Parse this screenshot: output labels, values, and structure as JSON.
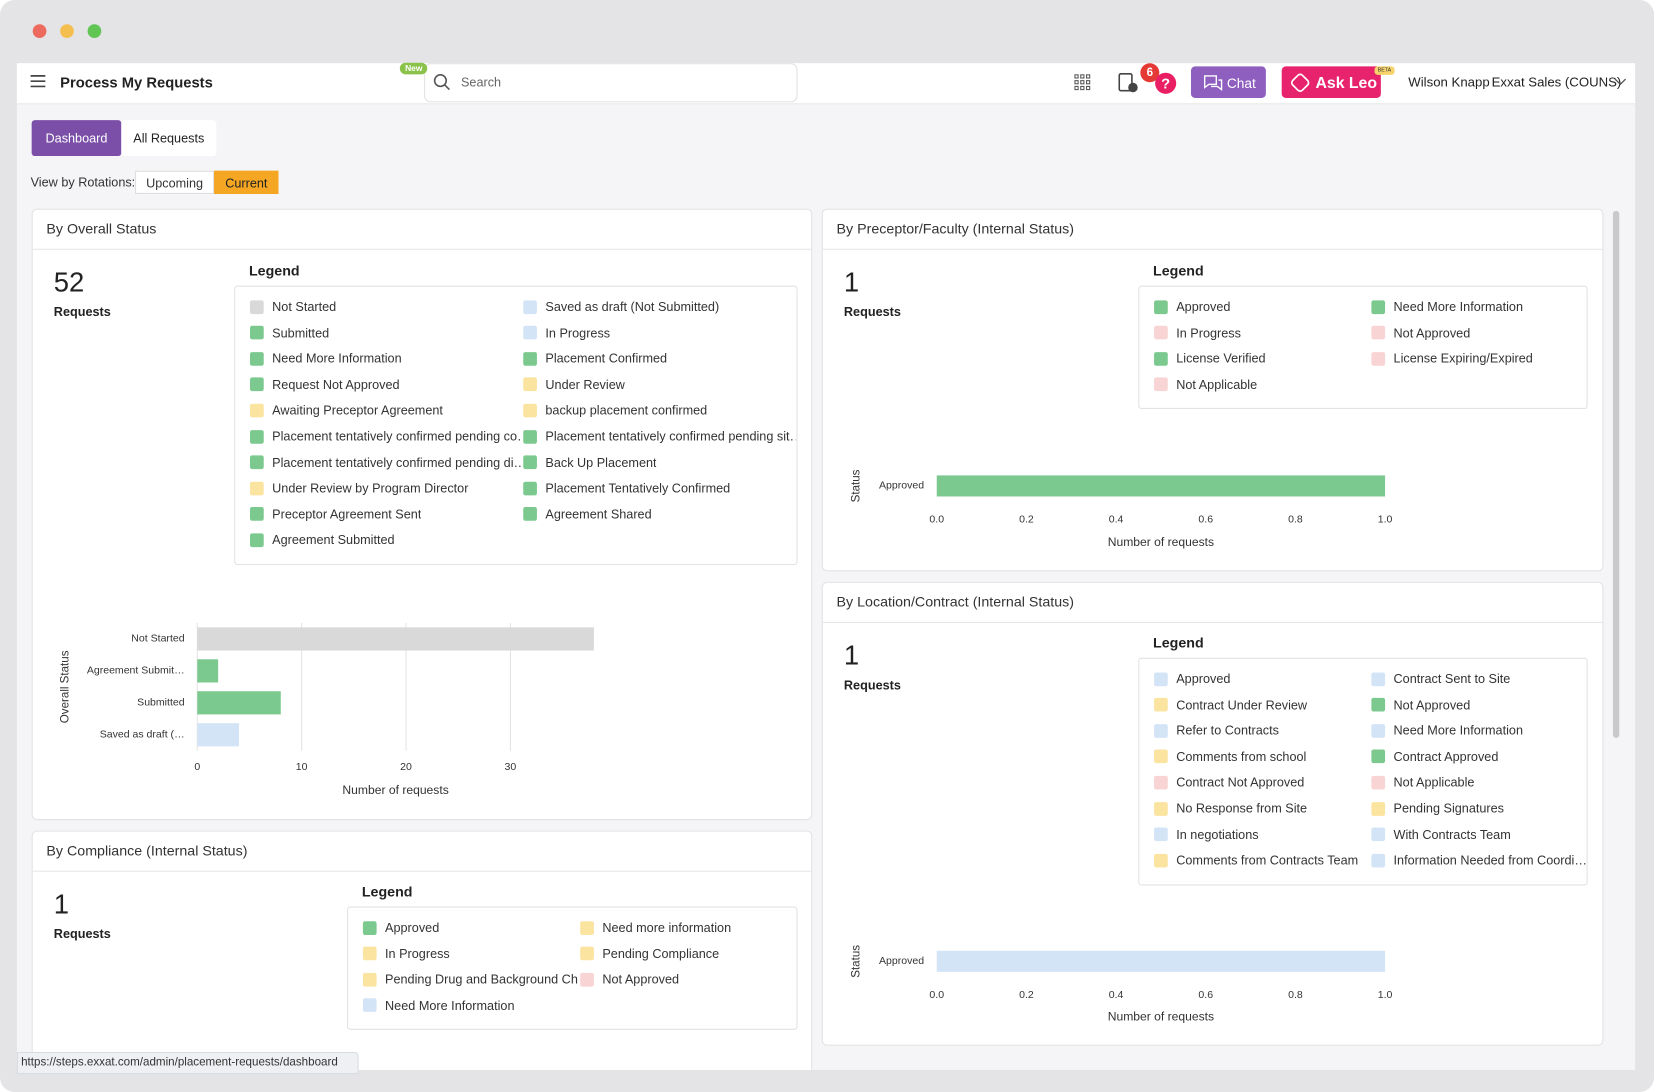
{
  "window": {
    "app_title": "Process My Requests",
    "new_badge": "New",
    "search_placeholder": "Search",
    "notification_count": 6,
    "chat": "Chat",
    "ask_leo": "Ask Leo",
    "beta": "BETA",
    "user_name": "Wilson Knapp",
    "organization": "Exxat Sales (COUNS)"
  },
  "tabs": [
    {
      "label": "Dashboard",
      "active": true
    },
    {
      "label": "All Requests",
      "active": false
    }
  ],
  "view_by": {
    "label": "View by Rotations:",
    "options": [
      {
        "label": "Upcoming",
        "active": false
      },
      {
        "label": "Current",
        "active": true
      }
    ]
  },
  "panels": [
    {
      "title": "By Overall Status",
      "count": 52,
      "count_label": "Requests",
      "legend_title": "Legend",
      "legend": [
        {
          "label": "Not Started",
          "color": "#d9d9d9"
        },
        {
          "label": "Saved as draft (Not Submitted)",
          "color": "#d4e4f7"
        },
        {
          "label": "Submitted",
          "color": "#7cc98f"
        },
        {
          "label": "In Progress",
          "color": "#d4e4f7"
        },
        {
          "label": "Need More Information",
          "color": "#7cc98f"
        },
        {
          "label": "Placement Confirmed",
          "color": "#7cc98f"
        },
        {
          "label": "Request Not Approved",
          "color": "#7cc98f"
        },
        {
          "label": "Under Review",
          "color": "#fbe3a0"
        },
        {
          "label": "Awaiting Preceptor Agreement",
          "color": "#fbe3a0"
        },
        {
          "label": "backup placement confirmed",
          "color": "#fbe3a0"
        },
        {
          "label": "Placement tentatively confirmed pending co…",
          "color": "#7cc98f"
        },
        {
          "label": "Placement tentatively confirmed pending sit…",
          "color": "#7cc98f"
        },
        {
          "label": "Placement tentatively confirmed pending di…",
          "color": "#7cc98f"
        },
        {
          "label": "Back Up Placement",
          "color": "#7cc98f"
        },
        {
          "label": "Under Review by Program Director",
          "color": "#fbe3a0"
        },
        {
          "label": "Placement Tentatively Confirmed",
          "color": "#7cc98f"
        },
        {
          "label": "Preceptor Agreement Sent",
          "color": "#7cc98f"
        },
        {
          "label": "Agreement Shared",
          "color": "#7cc98f"
        },
        {
          "label": "Agreement Submitted",
          "color": "#7cc98f"
        }
      ],
      "chart": {
        "type": "bar",
        "orientation": "horizontal",
        "y_label": "Overall Status",
        "x_label": "Number of requests",
        "categories": [
          "Not Started",
          "Agreement Submit…",
          "Submitted",
          "Saved as draft (…"
        ],
        "values": [
          38,
          2,
          8,
          4
        ],
        "colors": [
          "#d9d9d9",
          "#7cc98f",
          "#7cc98f",
          "#d4e4f7"
        ],
        "xlim": [
          0,
          38
        ],
        "xticks": [
          0,
          10,
          20,
          30
        ],
        "grid": true
      }
    },
    {
      "title": "By Preceptor/Faculty (Internal Status)",
      "count": 1,
      "count_label": "Requests",
      "legend_title": "Legend",
      "legend": [
        {
          "label": "Approved",
          "color": "#7cc98f"
        },
        {
          "label": "Need More Information",
          "color": "#7cc98f"
        },
        {
          "label": "In Progress",
          "color": "#f9d4d4"
        },
        {
          "label": "Not Approved",
          "color": "#f9d4d4"
        },
        {
          "label": "License Verified",
          "color": "#7cc98f"
        },
        {
          "label": "License Expiring/Expired",
          "color": "#f9d4d4"
        },
        {
          "label": "Not Applicable",
          "color": "#f9d4d4"
        }
      ],
      "chart": {
        "type": "bar",
        "orientation": "horizontal",
        "y_label": "Status",
        "x_label": "Number of requests",
        "categories": [
          "Approved"
        ],
        "values": [
          1
        ],
        "colors": [
          "#7cc98f"
        ],
        "xlim": [
          0,
          1
        ],
        "xticks": [
          {
            "value": 0,
            "label": "0.0"
          },
          {
            "value": 0.2,
            "label": "0.2"
          },
          {
            "value": 0.4,
            "label": "0.4"
          },
          {
            "value": 0.6,
            "label": "0.6"
          },
          {
            "value": 0.8,
            "label": "0.8"
          },
          {
            "value": 1,
            "label": "1.0"
          }
        ],
        "grid": false
      }
    },
    {
      "title": "By Location/Contract (Internal Status)",
      "count": 1,
      "count_label": "Requests",
      "legend_title": "Legend",
      "legend": [
        {
          "label": "Approved",
          "color": "#d4e4f7"
        },
        {
          "label": "Contract Sent to Site",
          "color": "#d4e4f7"
        },
        {
          "label": "Contract Under Review",
          "color": "#fbe3a0"
        },
        {
          "label": "Not Approved",
          "color": "#7cc98f"
        },
        {
          "label": "Refer to Contracts",
          "color": "#d4e4f7"
        },
        {
          "label": "Need More Information",
          "color": "#d4e4f7"
        },
        {
          "label": "Comments from school",
          "color": "#fbe3a0"
        },
        {
          "label": "Contract Approved",
          "color": "#7cc98f"
        },
        {
          "label": "Contract Not Approved",
          "color": "#f9d4d4"
        },
        {
          "label": "Not Applicable",
          "color": "#f9d4d4"
        },
        {
          "label": "No Response from Site",
          "color": "#fbe3a0"
        },
        {
          "label": "Pending Signatures",
          "color": "#fbe3a0"
        },
        {
          "label": "In negotiations",
          "color": "#d4e4f7"
        },
        {
          "label": "With Contracts Team",
          "color": "#d4e4f7"
        },
        {
          "label": "Comments from Contracts Team",
          "color": "#fbe3a0"
        },
        {
          "label": "Information Needed from Coordi…",
          "color": "#d4e4f7"
        }
      ],
      "chart": {
        "type": "bar",
        "orientation": "horizontal",
        "y_label": "Status",
        "x_label": "Number of requests",
        "categories": [
          "Approved"
        ],
        "values": [
          1
        ],
        "colors": [
          "#d4e4f7"
        ],
        "xlim": [
          0,
          1
        ],
        "xticks": [
          {
            "value": 0,
            "label": "0.0"
          },
          {
            "value": 0.2,
            "label": "0.2"
          },
          {
            "value": 0.4,
            "label": "0.4"
          },
          {
            "value": 0.6,
            "label": "0.6"
          },
          {
            "value": 0.8,
            "label": "0.8"
          },
          {
            "value": 1,
            "label": "1.0"
          }
        ],
        "grid": false
      }
    },
    {
      "title": "By Compliance (Internal Status)",
      "count": 1,
      "count_label": "Requests",
      "legend_title": "Legend",
      "legend": [
        {
          "label": "Approved",
          "color": "#7cc98f"
        },
        {
          "label": "Need more information",
          "color": "#fbe3a0"
        },
        {
          "label": "In Progress",
          "color": "#fbe3a0"
        },
        {
          "label": "Pending Compliance",
          "color": "#fbe3a0"
        },
        {
          "label": "Pending Drug and Background Ch…",
          "color": "#fbe3a0"
        },
        {
          "label": "Not Approved",
          "color": "#f9d4d4"
        },
        {
          "label": "Need More Information",
          "color": "#d4e4f7"
        }
      ]
    }
  ],
  "status_url": "https://steps.exxat.com/admin/placement-requests/dashboard"
}
